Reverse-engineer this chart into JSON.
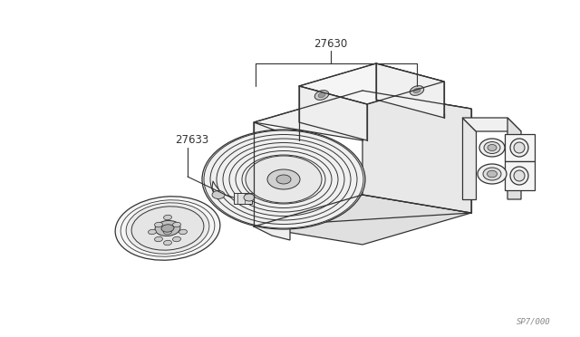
{
  "bg_color": "#ffffff",
  "line_color": "#333333",
  "label_color": "#333333",
  "label_27630": "27630",
  "label_27633": "27633",
  "watermark": "SP7/000",
  "figsize": [
    6.4,
    3.72
  ],
  "dpi": 100,
  "lw": 0.9,
  "label_fs": 8.5,
  "wm_fs": 6.5,
  "leader_lw": 0.8,
  "compressor_color": "#f0f0f0",
  "disc_color": "#e8e8e8"
}
